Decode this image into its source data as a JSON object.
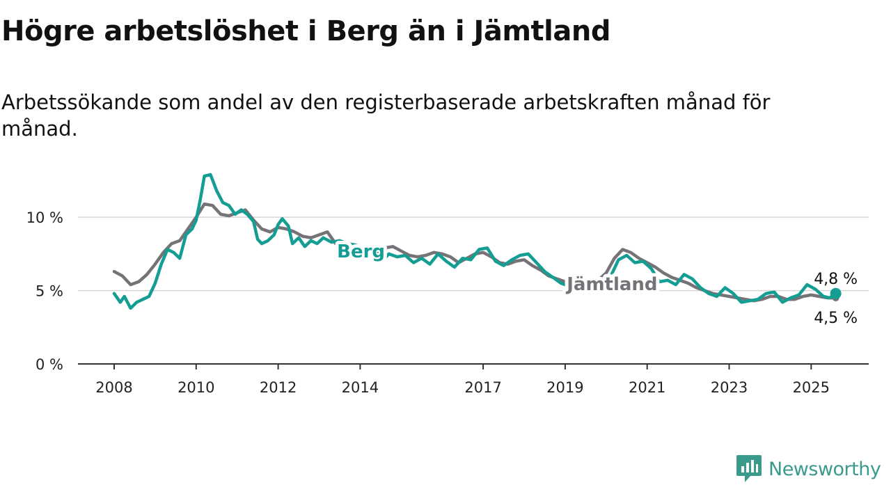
{
  "header": {
    "title": "Högre arbetslöshet i Berg än i Jämtland",
    "subtitle": "Arbetssökande som andel av den registerbaserade arbetskraften månad för månad."
  },
  "brand": {
    "name": "Newsworthy",
    "color": "#3a9a8c",
    "icon": "newsworthy-chart-icon"
  },
  "chart_data": {
    "type": "line",
    "title": "Högre arbetslöshet i Berg än i Jämtland",
    "subtitle": "Arbetssökande som andel av den registerbaserade arbetskraften månad för månad.",
    "xlabel": "",
    "ylabel": "",
    "xlim": [
      2007.9,
      2025.75
    ],
    "ylim": [
      0,
      12
    ],
    "x_ticks": [
      2008,
      2010,
      2012,
      2014,
      2017,
      2019,
      2021,
      2023,
      2025
    ],
    "y_ticks": [
      0,
      5,
      10
    ],
    "y_tick_labels": [
      "0 %",
      "5 %",
      "10 %"
    ],
    "grid": "horizontal",
    "legend": "inline labels",
    "series": [
      {
        "name": "Jämtland",
        "color": "#767378",
        "label_at": 2018.7,
        "end_label": "4,5 %",
        "points": [
          [
            2008.0,
            6.3
          ],
          [
            2008.2,
            6.0
          ],
          [
            2008.4,
            5.4
          ],
          [
            2008.6,
            5.6
          ],
          [
            2008.8,
            6.1
          ],
          [
            2009.0,
            6.8
          ],
          [
            2009.2,
            7.6
          ],
          [
            2009.4,
            8.2
          ],
          [
            2009.6,
            8.4
          ],
          [
            2009.8,
            9.2
          ],
          [
            2010.0,
            10.0
          ],
          [
            2010.2,
            10.9
          ],
          [
            2010.4,
            10.8
          ],
          [
            2010.6,
            10.2
          ],
          [
            2010.8,
            10.1
          ],
          [
            2011.0,
            10.3
          ],
          [
            2011.2,
            10.5
          ],
          [
            2011.4,
            9.8
          ],
          [
            2011.6,
            9.2
          ],
          [
            2011.8,
            9.0
          ],
          [
            2012.0,
            9.3
          ],
          [
            2012.2,
            9.2
          ],
          [
            2012.4,
            9.0
          ],
          [
            2012.6,
            8.7
          ],
          [
            2012.8,
            8.6
          ],
          [
            2013.0,
            8.8
          ],
          [
            2013.2,
            9.0
          ],
          [
            2013.4,
            8.2
          ],
          [
            2013.6,
            8.1
          ],
          [
            2013.8,
            8.0
          ],
          [
            2014.0,
            7.9
          ],
          [
            2014.2,
            7.8
          ],
          [
            2014.4,
            7.6
          ],
          [
            2014.6,
            7.9
          ],
          [
            2014.8,
            8.0
          ],
          [
            2015.0,
            7.7
          ],
          [
            2015.2,
            7.4
          ],
          [
            2015.4,
            7.3
          ],
          [
            2015.6,
            7.4
          ],
          [
            2015.8,
            7.6
          ],
          [
            2016.0,
            7.5
          ],
          [
            2016.2,
            7.3
          ],
          [
            2016.4,
            6.9
          ],
          [
            2016.6,
            7.2
          ],
          [
            2016.8,
            7.5
          ],
          [
            2017.0,
            7.6
          ],
          [
            2017.2,
            7.3
          ],
          [
            2017.4,
            6.9
          ],
          [
            2017.6,
            6.8
          ],
          [
            2017.8,
            7.0
          ],
          [
            2018.0,
            7.1
          ],
          [
            2018.2,
            6.7
          ],
          [
            2018.4,
            6.4
          ],
          [
            2018.6,
            6.0
          ],
          [
            2018.8,
            5.8
          ],
          [
            2019.0,
            5.6
          ],
          [
            2019.2,
            5.5
          ],
          [
            2019.4,
            5.4
          ],
          [
            2019.6,
            5.4
          ],
          [
            2019.8,
            5.7
          ],
          [
            2020.0,
            6.2
          ],
          [
            2020.2,
            7.2
          ],
          [
            2020.4,
            7.8
          ],
          [
            2020.6,
            7.6
          ],
          [
            2020.8,
            7.2
          ],
          [
            2021.0,
            6.9
          ],
          [
            2021.2,
            6.6
          ],
          [
            2021.4,
            6.2
          ],
          [
            2021.6,
            5.9
          ],
          [
            2021.8,
            5.7
          ],
          [
            2022.0,
            5.5
          ],
          [
            2022.2,
            5.2
          ],
          [
            2022.4,
            5.0
          ],
          [
            2022.6,
            4.8
          ],
          [
            2022.8,
            4.7
          ],
          [
            2023.0,
            4.6
          ],
          [
            2023.2,
            4.5
          ],
          [
            2023.4,
            4.4
          ],
          [
            2023.6,
            4.3
          ],
          [
            2023.8,
            4.4
          ],
          [
            2024.0,
            4.6
          ],
          [
            2024.2,
            4.6
          ],
          [
            2024.4,
            4.4
          ],
          [
            2024.6,
            4.4
          ],
          [
            2024.8,
            4.6
          ],
          [
            2025.0,
            4.7
          ],
          [
            2025.2,
            4.6
          ],
          [
            2025.4,
            4.5
          ],
          [
            2025.6,
            4.5
          ]
        ]
      },
      {
        "name": "Berg",
        "color": "#139d93",
        "label_at": 2013.3,
        "end_label": "4,8 %",
        "points": [
          [
            2008.0,
            4.8
          ],
          [
            2008.15,
            4.2
          ],
          [
            2008.25,
            4.6
          ],
          [
            2008.4,
            3.8
          ],
          [
            2008.55,
            4.2
          ],
          [
            2008.7,
            4.4
          ],
          [
            2008.85,
            4.6
          ],
          [
            2009.0,
            5.5
          ],
          [
            2009.15,
            6.8
          ],
          [
            2009.3,
            7.8
          ],
          [
            2009.45,
            7.6
          ],
          [
            2009.6,
            7.2
          ],
          [
            2009.75,
            8.8
          ],
          [
            2009.9,
            9.2
          ],
          [
            2010.0,
            9.8
          ],
          [
            2010.1,
            11.2
          ],
          [
            2010.2,
            12.8
          ],
          [
            2010.35,
            12.9
          ],
          [
            2010.5,
            11.8
          ],
          [
            2010.65,
            11.0
          ],
          [
            2010.8,
            10.8
          ],
          [
            2010.95,
            10.2
          ],
          [
            2011.1,
            10.5
          ],
          [
            2011.25,
            10.2
          ],
          [
            2011.4,
            9.7
          ],
          [
            2011.5,
            8.5
          ],
          [
            2011.6,
            8.2
          ],
          [
            2011.75,
            8.4
          ],
          [
            2011.9,
            8.8
          ],
          [
            2012.0,
            9.5
          ],
          [
            2012.1,
            9.9
          ],
          [
            2012.25,
            9.4
          ],
          [
            2012.35,
            8.2
          ],
          [
            2012.5,
            8.6
          ],
          [
            2012.65,
            8.0
          ],
          [
            2012.8,
            8.4
          ],
          [
            2012.95,
            8.2
          ],
          [
            2013.1,
            8.6
          ],
          [
            2013.3,
            8.3
          ],
          [
            2013.5,
            8.4
          ],
          [
            2013.7,
            8.2
          ],
          [
            2013.9,
            8.1
          ],
          [
            2014.1,
            7.9
          ],
          [
            2014.3,
            7.1
          ],
          [
            2014.5,
            6.9
          ],
          [
            2014.7,
            7.5
          ],
          [
            2014.9,
            7.3
          ],
          [
            2015.1,
            7.4
          ],
          [
            2015.3,
            6.9
          ],
          [
            2015.5,
            7.2
          ],
          [
            2015.7,
            6.8
          ],
          [
            2015.9,
            7.5
          ],
          [
            2016.1,
            7.0
          ],
          [
            2016.3,
            6.6
          ],
          [
            2016.5,
            7.2
          ],
          [
            2016.7,
            7.1
          ],
          [
            2016.9,
            7.8
          ],
          [
            2017.1,
            7.9
          ],
          [
            2017.3,
            7.0
          ],
          [
            2017.5,
            6.7
          ],
          [
            2017.7,
            7.1
          ],
          [
            2017.9,
            7.4
          ],
          [
            2018.1,
            7.5
          ],
          [
            2018.3,
            6.9
          ],
          [
            2018.5,
            6.3
          ],
          [
            2018.7,
            5.9
          ],
          [
            2018.9,
            5.5
          ],
          [
            2019.1,
            5.3
          ],
          [
            2019.3,
            5.1
          ],
          [
            2019.5,
            5.0
          ],
          [
            2019.7,
            5.3
          ],
          [
            2019.9,
            5.5
          ],
          [
            2020.1,
            5.9
          ],
          [
            2020.3,
            7.1
          ],
          [
            2020.5,
            7.4
          ],
          [
            2020.7,
            6.9
          ],
          [
            2020.9,
            7.0
          ],
          [
            2021.1,
            6.5
          ],
          [
            2021.3,
            5.6
          ],
          [
            2021.5,
            5.7
          ],
          [
            2021.7,
            5.4
          ],
          [
            2021.9,
            6.1
          ],
          [
            2022.1,
            5.8
          ],
          [
            2022.3,
            5.2
          ],
          [
            2022.5,
            4.8
          ],
          [
            2022.7,
            4.6
          ],
          [
            2022.9,
            5.2
          ],
          [
            2023.1,
            4.8
          ],
          [
            2023.3,
            4.2
          ],
          [
            2023.5,
            4.3
          ],
          [
            2023.7,
            4.4
          ],
          [
            2023.9,
            4.8
          ],
          [
            2024.1,
            4.9
          ],
          [
            2024.3,
            4.2
          ],
          [
            2024.5,
            4.5
          ],
          [
            2024.7,
            4.7
          ],
          [
            2024.9,
            5.4
          ],
          [
            2025.1,
            5.1
          ],
          [
            2025.3,
            4.6
          ],
          [
            2025.45,
            4.5
          ],
          [
            2025.6,
            4.8
          ]
        ]
      }
    ]
  }
}
